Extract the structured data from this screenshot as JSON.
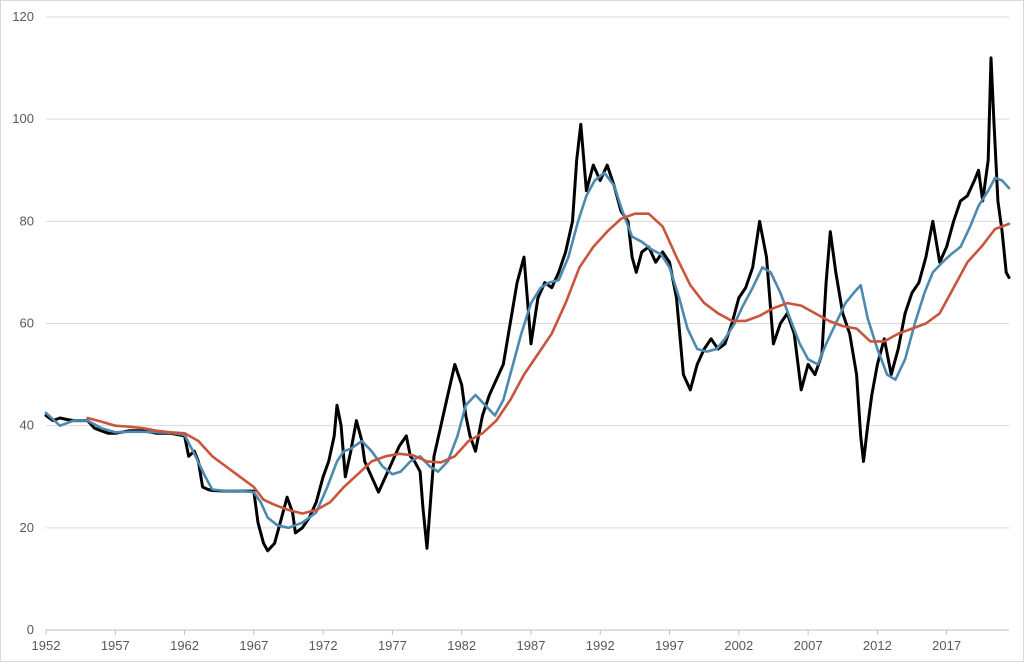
{
  "chart_data": {
    "type": "line",
    "title": "",
    "xlabel": "",
    "ylabel": "",
    "xlim": [
      1952,
      2021.5
    ],
    "ylim": [
      0,
      120
    ],
    "grid": "horizontal",
    "legend": "none",
    "x_ticks": [
      "1952",
      "1957",
      "1962",
      "1967",
      "1972",
      "1977",
      "1982",
      "1987",
      "1992",
      "1997",
      "2002",
      "2007",
      "2012",
      "2017"
    ],
    "y_ticks": [
      "0",
      "20",
      "40",
      "60",
      "80",
      "100",
      "120"
    ],
    "series": [
      {
        "color": "#000000",
        "points": [
          [
            1952.0,
            42
          ],
          [
            1952.5,
            41
          ],
          [
            1953,
            41.5
          ],
          [
            1953.5,
            41.2
          ],
          [
            1954,
            41
          ],
          [
            1955,
            41
          ],
          [
            1955.5,
            39.5
          ],
          [
            1956,
            39
          ],
          [
            1956.5,
            38.5
          ],
          [
            1957,
            38.5
          ],
          [
            1958,
            39
          ],
          [
            1959,
            39
          ],
          [
            1960,
            38.5
          ],
          [
            1961,
            38.5
          ],
          [
            1962,
            38
          ],
          [
            1962.3,
            34
          ],
          [
            1962.7,
            35
          ],
          [
            1963,
            33
          ],
          [
            1963.3,
            28
          ],
          [
            1963.7,
            27.5
          ],
          [
            1964,
            27.3
          ],
          [
            1965,
            27.2
          ],
          [
            1966,
            27.2
          ],
          [
            1967,
            27.2
          ],
          [
            1967.3,
            21
          ],
          [
            1967.7,
            17
          ],
          [
            1968,
            15.5
          ],
          [
            1968.5,
            17
          ],
          [
            1969,
            22
          ],
          [
            1969.4,
            26
          ],
          [
            1969.8,
            23
          ],
          [
            1970,
            19
          ],
          [
            1970.5,
            20
          ],
          [
            1971,
            22
          ],
          [
            1971.5,
            25
          ],
          [
            1972,
            30
          ],
          [
            1972.4,
            33
          ],
          [
            1972.8,
            38
          ],
          [
            1973,
            44
          ],
          [
            1973.3,
            40
          ],
          [
            1973.6,
            30
          ],
          [
            1974,
            35
          ],
          [
            1974.4,
            41
          ],
          [
            1974.8,
            37
          ],
          [
            1975,
            33
          ],
          [
            1975.5,
            30
          ],
          [
            1976,
            27
          ],
          [
            1976.5,
            30
          ],
          [
            1977,
            33
          ],
          [
            1977.5,
            36
          ],
          [
            1978,
            38
          ],
          [
            1978.3,
            34
          ],
          [
            1978.6,
            33
          ],
          [
            1979,
            31
          ],
          [
            1979.2,
            24
          ],
          [
            1979.5,
            16
          ],
          [
            1979.8,
            27
          ],
          [
            1980,
            34
          ],
          [
            1980.5,
            40
          ],
          [
            1981,
            46
          ],
          [
            1981.5,
            52
          ],
          [
            1982,
            48
          ],
          [
            1982.3,
            42
          ],
          [
            1982.6,
            38
          ],
          [
            1983,
            35
          ],
          [
            1983.5,
            42
          ],
          [
            1984,
            46
          ],
          [
            1984.5,
            49
          ],
          [
            1985,
            52
          ],
          [
            1985.5,
            60
          ],
          [
            1986,
            68
          ],
          [
            1986.5,
            73
          ],
          [
            1987,
            56
          ],
          [
            1987.5,
            65
          ],
          [
            1988,
            68
          ],
          [
            1988.5,
            67
          ],
          [
            1989,
            70
          ],
          [
            1989.5,
            74
          ],
          [
            1990,
            80
          ],
          [
            1990.3,
            92
          ],
          [
            1990.6,
            99
          ],
          [
            1991,
            86
          ],
          [
            1991.5,
            91
          ],
          [
            1992,
            88
          ],
          [
            1992.5,
            91
          ],
          [
            1993,
            87
          ],
          [
            1993.5,
            82
          ],
          [
            1994,
            80
          ],
          [
            1994.3,
            73
          ],
          [
            1994.6,
            70
          ],
          [
            1995,
            74
          ],
          [
            1995.5,
            75
          ],
          [
            1996,
            72
          ],
          [
            1996.5,
            74
          ],
          [
            1997,
            72
          ],
          [
            1997.5,
            65
          ],
          [
            1998,
            50
          ],
          [
            1998.5,
            47
          ],
          [
            1999,
            52
          ],
          [
            1999.5,
            55
          ],
          [
            2000,
            57
          ],
          [
            2000.5,
            55
          ],
          [
            2001,
            56
          ],
          [
            2001.5,
            60
          ],
          [
            2002,
            65
          ],
          [
            2002.5,
            67
          ],
          [
            2003,
            71
          ],
          [
            2003.5,
            80
          ],
          [
            2004,
            73
          ],
          [
            2004.5,
            56
          ],
          [
            2005,
            60
          ],
          [
            2005.5,
            62
          ],
          [
            2006,
            58
          ],
          [
            2006.5,
            47
          ],
          [
            2007,
            52
          ],
          [
            2007.5,
            50
          ],
          [
            2008,
            54
          ],
          [
            2008.3,
            68
          ],
          [
            2008.6,
            78
          ],
          [
            2009,
            70
          ],
          [
            2009.5,
            62
          ],
          [
            2010,
            58
          ],
          [
            2010.5,
            50
          ],
          [
            2010.8,
            38
          ],
          [
            2011,
            33
          ],
          [
            2011.3,
            40
          ],
          [
            2011.6,
            46
          ],
          [
            2012,
            52
          ],
          [
            2012.5,
            57
          ],
          [
            2013,
            50
          ],
          [
            2013.5,
            55
          ],
          [
            2014,
            62
          ],
          [
            2014.5,
            66
          ],
          [
            2015,
            68
          ],
          [
            2015.5,
            73
          ],
          [
            2016,
            80
          ],
          [
            2016.5,
            72
          ],
          [
            2017,
            75
          ],
          [
            2017.5,
            80
          ],
          [
            2018,
            84
          ],
          [
            2018.5,
            85
          ],
          [
            2019,
            88
          ],
          [
            2019.3,
            90
          ],
          [
            2019.6,
            84
          ],
          [
            2020,
            92
          ],
          [
            2020.2,
            112
          ],
          [
            2020.4,
            100
          ],
          [
            2020.7,
            84
          ],
          [
            2021,
            78
          ],
          [
            2021.3,
            70
          ],
          [
            2021.5,
            69
          ]
        ]
      },
      {
        "color": "#4d8aaf",
        "points": [
          [
            1952.0,
            42.5
          ],
          [
            1953,
            40
          ],
          [
            1954,
            41
          ],
          [
            1955,
            41
          ],
          [
            1956,
            39.5
          ],
          [
            1957,
            38.7
          ],
          [
            1958,
            38.8
          ],
          [
            1959,
            38.8
          ],
          [
            1960,
            38.7
          ],
          [
            1961,
            38.6
          ],
          [
            1962,
            38.2
          ],
          [
            1962.8,
            34
          ],
          [
            1963.5,
            30
          ],
          [
            1964,
            27.5
          ],
          [
            1965,
            27.2
          ],
          [
            1966,
            27.2
          ],
          [
            1967,
            27
          ],
          [
            1967.5,
            25
          ],
          [
            1968,
            22
          ],
          [
            1968.7,
            20.5
          ],
          [
            1969.5,
            20
          ],
          [
            1970.5,
            21
          ],
          [
            1971.5,
            23
          ],
          [
            1972.3,
            28
          ],
          [
            1973,
            33
          ],
          [
            1973.5,
            35
          ],
          [
            1974,
            35.5
          ],
          [
            1974.8,
            37
          ],
          [
            1975.5,
            35
          ],
          [
            1976.3,
            32
          ],
          [
            1977,
            30.5
          ],
          [
            1977.6,
            31
          ],
          [
            1978.3,
            33
          ],
          [
            1979,
            34
          ],
          [
            1979.7,
            32
          ],
          [
            1980.3,
            31
          ],
          [
            1981,
            33
          ],
          [
            1981.7,
            38
          ],
          [
            1982.3,
            44
          ],
          [
            1983,
            46
          ],
          [
            1983.7,
            44
          ],
          [
            1984.4,
            42
          ],
          [
            1985,
            45
          ],
          [
            1985.7,
            52
          ],
          [
            1986.3,
            58
          ],
          [
            1987,
            64
          ],
          [
            1987.7,
            67
          ],
          [
            1988.3,
            68
          ],
          [
            1989,
            68.5
          ],
          [
            1989.7,
            73
          ],
          [
            1990.4,
            80
          ],
          [
            1991,
            85
          ],
          [
            1991.6,
            88
          ],
          [
            1992.3,
            89.5
          ],
          [
            1993,
            87
          ],
          [
            1993.6,
            82
          ],
          [
            1994.3,
            77
          ],
          [
            1995,
            76
          ],
          [
            1995.7,
            74.5
          ],
          [
            1996.4,
            73.5
          ],
          [
            1997,
            71
          ],
          [
            1997.7,
            65
          ],
          [
            1998.3,
            59
          ],
          [
            1999,
            55
          ],
          [
            1999.7,
            54.5
          ],
          [
            2000.4,
            55
          ],
          [
            2001,
            57
          ],
          [
            2001.7,
            60
          ],
          [
            2002.3,
            63.5
          ],
          [
            2003,
            67
          ],
          [
            2003.7,
            71
          ],
          [
            2004.3,
            70
          ],
          [
            2005,
            66
          ],
          [
            2005.7,
            61
          ],
          [
            2006.4,
            56
          ],
          [
            2007,
            53
          ],
          [
            2007.7,
            52
          ],
          [
            2008.3,
            56
          ],
          [
            2009,
            60
          ],
          [
            2009.7,
            64
          ],
          [
            2010.3,
            66
          ],
          [
            2010.8,
            67.5
          ],
          [
            2011.3,
            61
          ],
          [
            2012,
            55
          ],
          [
            2012.7,
            50
          ],
          [
            2013.3,
            49
          ],
          [
            2014,
            53
          ],
          [
            2014.7,
            60
          ],
          [
            2015.4,
            66
          ],
          [
            2016,
            70
          ],
          [
            2016.7,
            72
          ],
          [
            2017.3,
            73.5
          ],
          [
            2018,
            75
          ],
          [
            2018.7,
            79
          ],
          [
            2019.3,
            83
          ],
          [
            2020,
            86
          ],
          [
            2020.5,
            88.5
          ],
          [
            2021,
            88
          ],
          [
            2021.5,
            86.5
          ]
        ]
      },
      {
        "color": "#c9553c",
        "points": [
          [
            1955.0,
            41.5
          ],
          [
            1956,
            40.8
          ],
          [
            1957,
            40
          ],
          [
            1958,
            39.8
          ],
          [
            1959,
            39.5
          ],
          [
            1960,
            39
          ],
          [
            1961,
            38.7
          ],
          [
            1962,
            38.5
          ],
          [
            1963,
            37
          ],
          [
            1964,
            34
          ],
          [
            1965,
            32
          ],
          [
            1966,
            30
          ],
          [
            1967,
            28
          ],
          [
            1967.7,
            25.5
          ],
          [
            1968.5,
            24.5
          ],
          [
            1969.5,
            23.5
          ],
          [
            1970.5,
            22.8
          ],
          [
            1971.5,
            23.5
          ],
          [
            1972.5,
            25
          ],
          [
            1973.5,
            28
          ],
          [
            1974.5,
            30.5
          ],
          [
            1975.5,
            33
          ],
          [
            1976.5,
            34
          ],
          [
            1977.5,
            34.5
          ],
          [
            1978.5,
            34.2
          ],
          [
            1979.5,
            33
          ],
          [
            1980.5,
            32.8
          ],
          [
            1981.5,
            34
          ],
          [
            1982.5,
            37
          ],
          [
            1983.5,
            38.5
          ],
          [
            1984.5,
            41
          ],
          [
            1985.5,
            45
          ],
          [
            1986.5,
            50
          ],
          [
            1987.5,
            54
          ],
          [
            1988.5,
            58
          ],
          [
            1989.5,
            64
          ],
          [
            1990.5,
            71
          ],
          [
            1991.5,
            75
          ],
          [
            1992.5,
            78
          ],
          [
            1993.5,
            80.5
          ],
          [
            1994.5,
            81.5
          ],
          [
            1995.5,
            81.5
          ],
          [
            1996.5,
            79
          ],
          [
            1997.5,
            73
          ],
          [
            1998.5,
            67.5
          ],
          [
            1999.5,
            64
          ],
          [
            2000.5,
            62
          ],
          [
            2001.5,
            60.5
          ],
          [
            2002.5,
            60.5
          ],
          [
            2003.5,
            61.5
          ],
          [
            2004.5,
            63
          ],
          [
            2005.5,
            64
          ],
          [
            2006.5,
            63.5
          ],
          [
            2007.5,
            62
          ],
          [
            2008.5,
            60.5
          ],
          [
            2009.5,
            59.5
          ],
          [
            2010.5,
            59
          ],
          [
            2011.5,
            56.5
          ],
          [
            2012.5,
            56.5
          ],
          [
            2013.5,
            58
          ],
          [
            2014.5,
            59
          ],
          [
            2015.5,
            60
          ],
          [
            2016.5,
            62
          ],
          [
            2017.5,
            67
          ],
          [
            2018.5,
            72
          ],
          [
            2019.5,
            75
          ],
          [
            2020.5,
            78.5
          ],
          [
            2021.5,
            79.5
          ]
        ]
      }
    ]
  }
}
